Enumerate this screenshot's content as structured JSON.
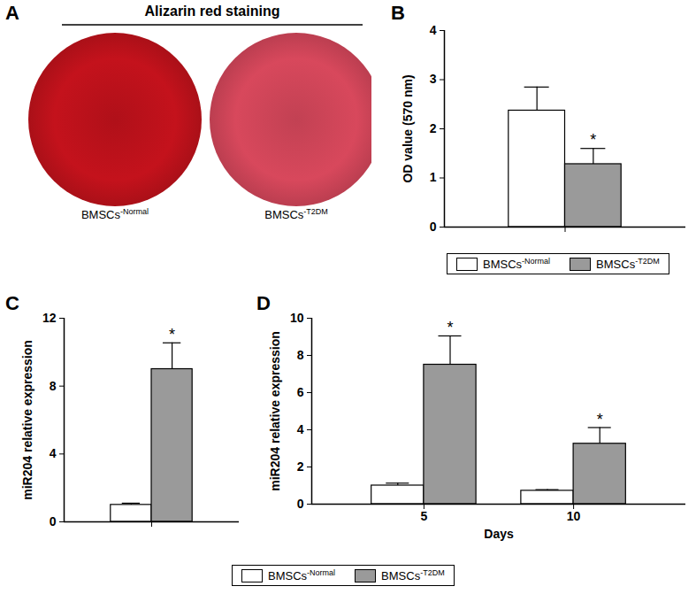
{
  "chart_data": [
    {
      "panel": "A",
      "type": "image",
      "title": "Alizarin red staining",
      "categories": [
        "BMSCs-Normal",
        "BMSCs-T2DM"
      ],
      "colors": [
        "#c4121c",
        "#d8485c"
      ]
    },
    {
      "panel": "B",
      "type": "bar",
      "y_label": "OD value (570 nm)",
      "categories": [
        null
      ],
      "series": [
        {
          "name": "BMSCs-Normal",
          "color": "#ffffff",
          "values": [
            2.37
          ],
          "errors": [
            0.48
          ],
          "annotations": [
            null
          ]
        },
        {
          "name": "BMSCs-T2DM",
          "color": "#9a9a9a",
          "values": [
            1.28
          ],
          "errors": [
            0.32
          ],
          "annotations": [
            "*"
          ]
        }
      ],
      "ylim": [
        0,
        4
      ],
      "yticks": [
        0,
        1,
        2,
        3,
        4
      ],
      "legend": "bottom"
    },
    {
      "panel": "C",
      "type": "bar",
      "y_label": "miR204 relative expression",
      "categories": [
        null
      ],
      "series": [
        {
          "name": "BMSCs-Normal",
          "color": "#ffffff",
          "values": [
            1.0
          ],
          "errors": [
            0.1
          ],
          "annotations": [
            null
          ]
        },
        {
          "name": "BMSCs-T2DM",
          "color": "#9a9a9a",
          "values": [
            9.0
          ],
          "errors": [
            1.55
          ],
          "annotations": [
            "*"
          ]
        }
      ],
      "ylim": [
        0,
        12
      ],
      "yticks": [
        0,
        4,
        8,
        12
      ]
    },
    {
      "panel": "D",
      "type": "bar",
      "y_label": "miR204 relative expression",
      "x_label": "Days",
      "categories": [
        "5",
        "10"
      ],
      "series": [
        {
          "name": "BMSCs-Normal",
          "color": "#ffffff",
          "values": [
            1.0,
            0.72
          ],
          "errors": [
            0.13,
            0.06
          ],
          "annotations": [
            null,
            null
          ]
        },
        {
          "name": "BMSCs-T2DM",
          "color": "#9a9a9a",
          "values": [
            7.5,
            3.25
          ],
          "errors": [
            1.55,
            0.87
          ],
          "annotations": [
            "*",
            "*"
          ]
        }
      ],
      "ylim": [
        0,
        10
      ],
      "yticks": [
        0,
        2,
        4,
        6,
        8,
        10
      ],
      "legend": "bottom"
    }
  ]
}
